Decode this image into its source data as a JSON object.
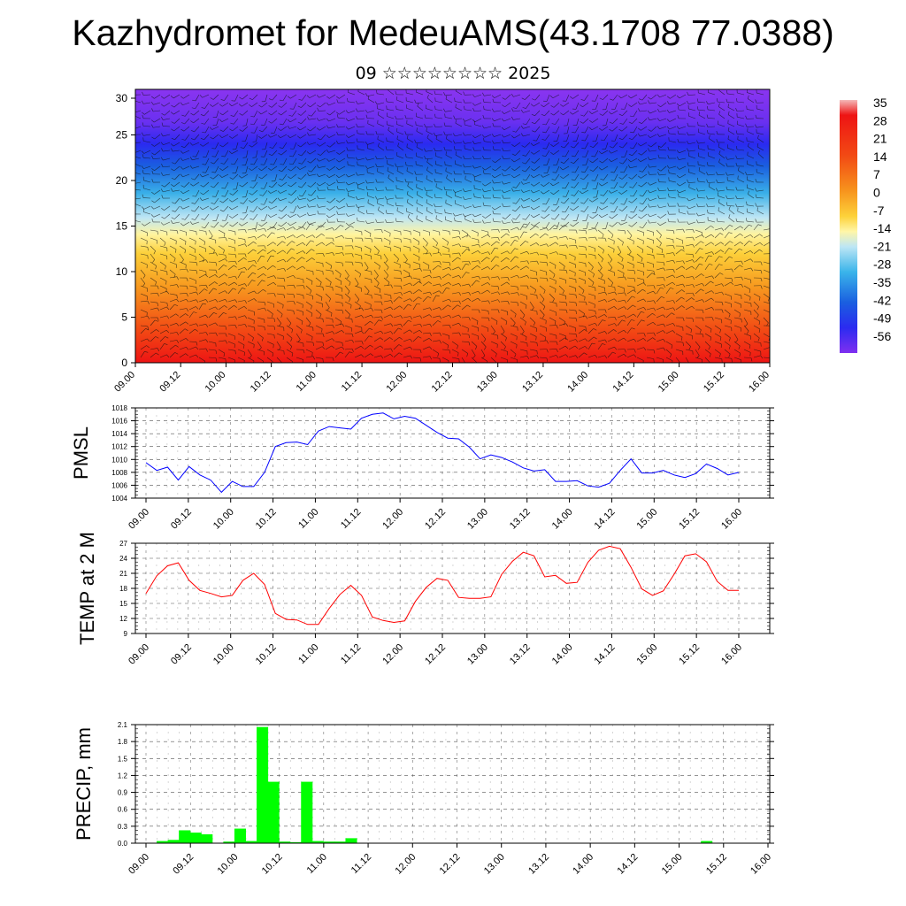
{
  "header": {
    "title": "Kazhydromet for MedeuAMS(43.1708 77.0388)",
    "subtitle": "09 ☆☆☆☆☆☆☆☆ 2025"
  },
  "chart_data": [
    {
      "type": "heatmap",
      "title": "",
      "x_ticks": [
        "09.00",
        "09.12",
        "10.00",
        "10.12",
        "11.00",
        "11.12",
        "12.00",
        "12.12",
        "13.00",
        "13.12",
        "14.00",
        "14.12",
        "15.00",
        "15.12",
        "16.00"
      ],
      "ylim": [
        0,
        30
      ],
      "y_ticks": [
        "0",
        "5",
        "10",
        "15",
        "20",
        "25",
        "30"
      ],
      "colorbar": {
        "labels": [
          "35",
          "28",
          "21",
          "14",
          "7",
          "0",
          "-7",
          "-14",
          "-21",
          "-28",
          "-35",
          "-42",
          "-49",
          "-56"
        ],
        "colors": [
          "#f4b8b8",
          "#ee1414",
          "#f04d14",
          "#f7941d",
          "#fdd23a",
          "#fff6a8",
          "#bde6f5",
          "#3ab4ea",
          "#1a5fe0",
          "#2b2bf0",
          "#7f2ff0"
        ]
      },
      "wind_barbs": true
    },
    {
      "type": "line",
      "ylabel": "PMSL",
      "color": "#0000ff",
      "ylim": [
        1004,
        1018
      ],
      "y_ticks": [
        "1004",
        "1006",
        "1008",
        "1010",
        "1012",
        "1014",
        "1016",
        "1018"
      ],
      "x_ticks": [
        "09.00",
        "09.12",
        "10.00",
        "10.12",
        "11.00",
        "11.12",
        "12.00",
        "12.12",
        "13.00",
        "13.12",
        "14.00",
        "14.12",
        "15.00",
        "15.12",
        "16.00"
      ],
      "x_start": 9.0,
      "x_step_hours": 3,
      "values": [
        1009.5,
        1008.3,
        1008.8,
        1006.8,
        1008.9,
        1007.6,
        1006.8,
        1004.9,
        1006.6,
        1005.8,
        1005.8,
        1008.0,
        1012.0,
        1012.6,
        1012.7,
        1012.3,
        1014.4,
        1015.1,
        1014.9,
        1014.7,
        1016.4,
        1017.0,
        1017.2,
        1016.3,
        1016.7,
        1016.4,
        1015.3,
        1014.2,
        1013.3,
        1013.2,
        1011.9,
        1010.1,
        1010.7,
        1010.3,
        1009.6,
        1008.7,
        1008.2,
        1008.4,
        1006.6,
        1006.6,
        1006.7,
        1005.9,
        1005.7,
        1006.3,
        1008.3,
        1010.1,
        1007.9,
        1007.9,
        1008.3,
        1007.6,
        1007.2,
        1007.8,
        1009.3,
        1008.6,
        1007.6,
        1008.0
      ]
    },
    {
      "type": "line",
      "ylabel": "TEMP at 2 M",
      "color": "#ff0000",
      "ylim": [
        9,
        27
      ],
      "y_ticks": [
        "9",
        "12",
        "15",
        "18",
        "21",
        "24",
        "27"
      ],
      "x_ticks": [
        "09.00",
        "09.12",
        "10.00",
        "10.12",
        "11.00",
        "11.12",
        "12.00",
        "12.12",
        "13.00",
        "13.12",
        "14.00",
        "14.12",
        "15.00",
        "15.12",
        "16.00"
      ],
      "x_start": 9.0,
      "x_step_hours": 3,
      "values": [
        17.0,
        20.5,
        22.5,
        23.1,
        19.6,
        17.6,
        17.0,
        16.3,
        16.6,
        19.6,
        21.0,
        18.8,
        13.0,
        11.8,
        11.7,
        10.8,
        10.8,
        14.0,
        16.8,
        18.6,
        16.6,
        12.3,
        11.6,
        11.2,
        11.5,
        15.4,
        18.2,
        20.0,
        19.6,
        16.2,
        16.0,
        16.0,
        16.3,
        20.8,
        23.4,
        25.2,
        24.5,
        20.3,
        20.6,
        19.0,
        19.2,
        23.2,
        25.6,
        26.4,
        25.9,
        22.2,
        17.9,
        16.6,
        17.5,
        20.8,
        24.5,
        24.9,
        23.3,
        19.4,
        17.6,
        17.6
      ]
    },
    {
      "type": "bar",
      "ylabel": "PRECIP, mm",
      "color": "#00ff00",
      "ylim": [
        0,
        2.1
      ],
      "y_ticks": [
        "0.0",
        "0.3",
        "0.6",
        "0.9",
        "1.2",
        "1.5",
        "1.8",
        "2.1"
      ],
      "x_ticks": [
        "09.00",
        "09.12",
        "10.00",
        "10.12",
        "11.00",
        "11.12",
        "12.00",
        "12.12",
        "13.00",
        "13.12",
        "14.00",
        "14.12",
        "15.00",
        "15.12",
        "16.00"
      ],
      "x_start": 9.0,
      "x_step_hours": 3,
      "values": [
        0,
        0.03,
        0.05,
        0.22,
        0.18,
        0.15,
        0,
        0.02,
        0.25,
        0.03,
        2.05,
        1.08,
        0.02,
        0.01,
        1.08,
        0.03,
        0.02,
        0.02,
        0.08,
        0,
        0,
        0,
        0,
        0,
        0,
        0,
        0,
        0,
        0,
        0,
        0,
        0,
        0,
        0,
        0,
        0,
        0,
        0,
        0,
        0,
        0,
        0,
        0,
        0,
        0,
        0,
        0,
        0,
        0,
        0,
        0.03,
        0,
        0,
        0,
        0,
        0,
        0
      ]
    }
  ]
}
